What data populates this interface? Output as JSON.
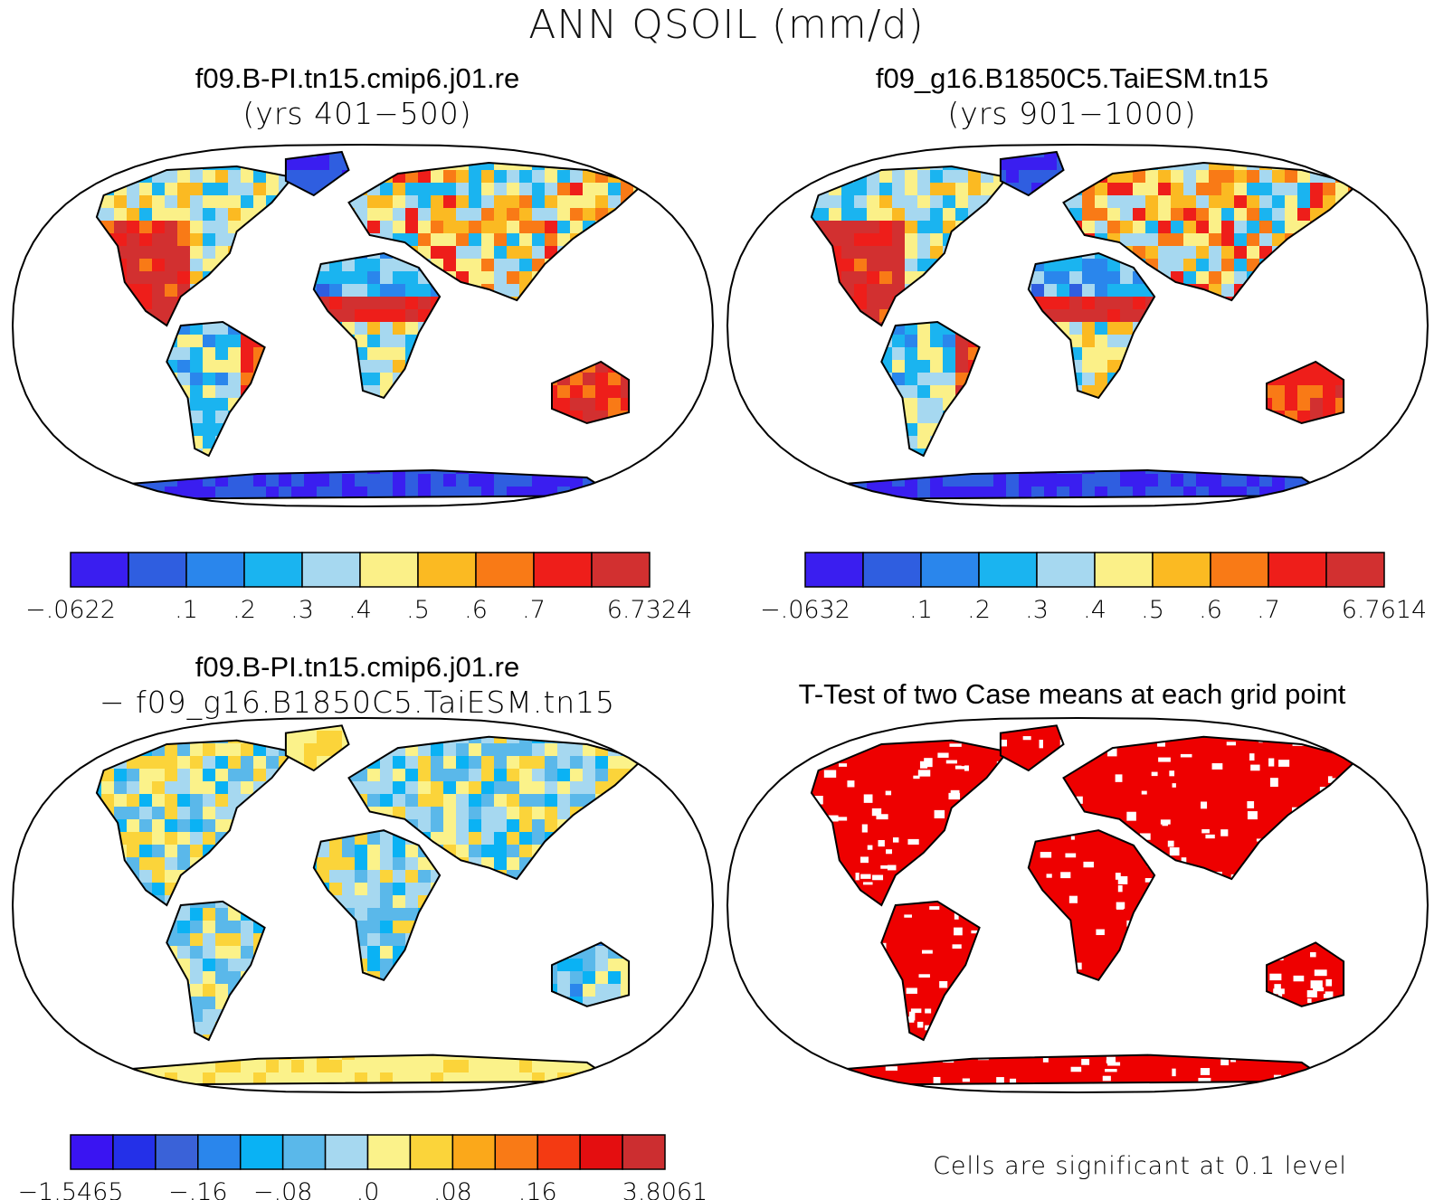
{
  "main_title": "ANN QSOIL (mm/d)",
  "panels": {
    "case1": {
      "line1": "f09.B-PI.tn15.cmip6.j01.re",
      "line2": "(yrs 401−500)"
    },
    "case2": {
      "line1": "f09_g16.B1850C5.TaiESM.tn15",
      "line2": "(yrs 901−1000)"
    },
    "diff": {
      "line1": "f09.B-PI.tn15.cmip6.j01.re",
      "line2": "− f09_g16.B1850C5.TaiESM.tn15"
    },
    "ttest": {
      "line1": "T-Test of two Case means at each grid point",
      "footnote": "Cells are significant at 0.1 level"
    }
  },
  "chart_data": [
    {
      "type": "heatmap",
      "title": "f09.B-PI.tn15.cmip6.j01.re (yrs 401−500)",
      "projection": "robinson-world-map",
      "colorbar": {
        "labels": [
          "−.0622",
          ".1",
          ".2",
          ".3",
          ".4",
          ".5",
          ".6",
          ".7",
          "6.7324"
        ],
        "colors": [
          "#3a1ef0",
          "#2f5ee0",
          "#2a86ec",
          "#1ab4f0",
          "#a6d8f0",
          "#fbf088",
          "#fbba22",
          "#f97a16",
          "#ee1e1a",
          "#d23030"
        ]
      }
    },
    {
      "type": "heatmap",
      "title": "f09_g16.B1850C5.TaiESM.tn15 (yrs 901−1000)",
      "projection": "robinson-world-map",
      "colorbar": {
        "labels": [
          "−.0632",
          ".1",
          ".2",
          ".3",
          ".4",
          ".5",
          ".6",
          ".7",
          "6.7614"
        ],
        "colors": [
          "#3a1ef0",
          "#2f5ee0",
          "#2a86ec",
          "#1ab4f0",
          "#a6d8f0",
          "#fbf088",
          "#fbba22",
          "#f97a16",
          "#ee1e1a",
          "#d23030"
        ]
      }
    },
    {
      "type": "heatmap",
      "title": "f09.B-PI.tn15.cmip6.j01.re − f09_g16.B1850C5.TaiESM.tn15",
      "projection": "robinson-world-map",
      "colorbar": {
        "labels": [
          "−1.5465",
          "−.16",
          "−.08",
          ".0",
          ".08",
          ".16",
          "3.8061"
        ],
        "colors": [
          "#3a14f2",
          "#2430e8",
          "#3a62d8",
          "#2a86ec",
          "#0ab2f4",
          "#5ab8ea",
          "#a6d8f0",
          "#fbf28a",
          "#fbd43a",
          "#fba81a",
          "#f97a16",
          "#f43a12",
          "#e40e10",
          "#cc2e30"
        ]
      }
    },
    {
      "type": "heatmap",
      "title": "T-Test of two Case means at each grid point",
      "projection": "robinson-world-map",
      "significance_color": "#ee0000",
      "note": "Cells are significant at 0.1 level"
    }
  ]
}
